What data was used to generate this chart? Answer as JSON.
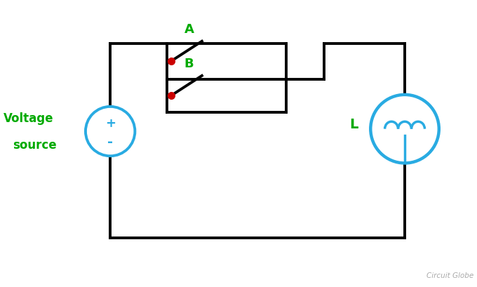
{
  "bg_color": "#ffffff",
  "wire_color": "#000000",
  "switch_dot_color": "#cc0000",
  "source_color": "#29abe2",
  "inductor_color": "#29abe2",
  "label_A_color": "#00aa00",
  "label_B_color": "#00aa00",
  "label_L_color": "#00aa00",
  "label_VS_color": "#00aa00",
  "plus_color": "#29abe2",
  "minus_color": "#29abe2",
  "watermark_color": "#aaaaaa",
  "watermark_text": "Circuit Globe",
  "label_A": "A",
  "label_B": "B",
  "label_L": "L",
  "label_VS1": "Voltage",
  "label_VS2": "source",
  "label_plus": "+",
  "label_minus": "-",
  "figsize": [
    6.8,
    4.1
  ],
  "dpi": 100
}
